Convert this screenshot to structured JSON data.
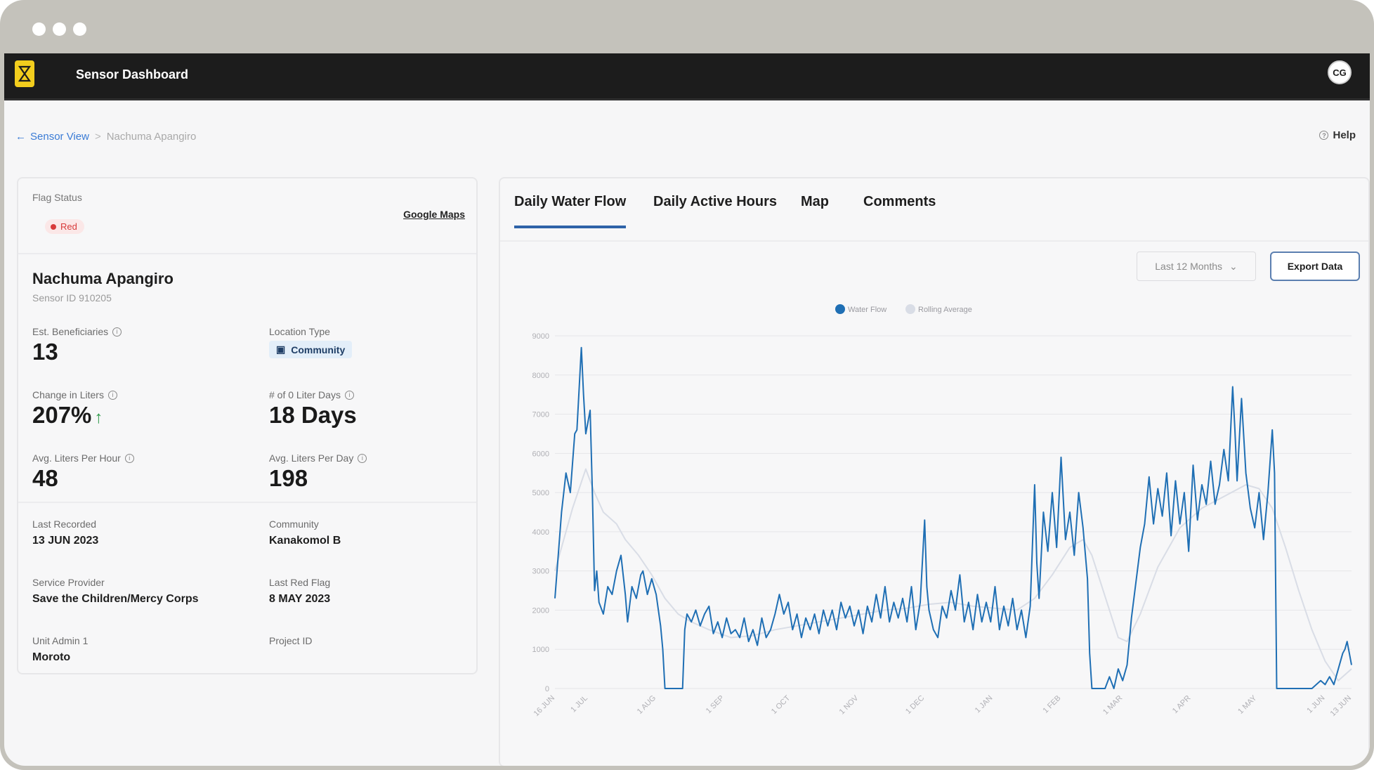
{
  "app": {
    "title": "Sensor Dashboard",
    "user_initials": "CG"
  },
  "breadcrumb": {
    "back_label": "Sensor View",
    "separator": ">",
    "current": "Nachuma Apangiro"
  },
  "help_label": "Help",
  "sensor": {
    "flag_status_label": "Flag Status",
    "flag_status": "Red",
    "google_maps_label": "Google Maps",
    "name": "Nachuma Apangiro",
    "sensor_id": "Sensor ID 910205",
    "stats": {
      "beneficiaries_label": "Est. Beneficiaries",
      "beneficiaries": "13",
      "location_type_label": "Location Type",
      "location_type": "Community",
      "change_label": "Change in Liters",
      "change": "207%",
      "zero_days_label": "# of 0 Liter Days",
      "zero_days": "18 Days",
      "avg_hour_label": "Avg. Liters Per Hour",
      "avg_hour": "48",
      "avg_day_label": "Avg. Liters Per Day",
      "avg_day": "198"
    },
    "meta": {
      "last_recorded_label": "Last Recorded",
      "last_recorded": "13 JUN 2023",
      "community_label": "Community",
      "community": "Kanakomol B",
      "service_provider_label": "Service Provider",
      "service_provider": "Save the Children/Mercy Corps",
      "last_red_flag_label": "Last Red Flag",
      "last_red_flag": "8 MAY 2023",
      "unit_admin_label": "Unit Admin 1",
      "unit_admin": "Moroto",
      "project_id_label": "Project ID",
      "project_id": ""
    }
  },
  "tabs": [
    "Daily Water Flow",
    "Daily Active Hours",
    "Map",
    "Comments"
  ],
  "controls": {
    "range": "Last 12 Months",
    "export_label": "Export Data"
  },
  "colors": {
    "flow": "#1f6fb4",
    "rolling": "#d9dde6",
    "accent": "#2e63a8",
    "flag_red": "#d83a3a"
  },
  "chart_data": {
    "type": "line",
    "legend": [
      "Water Flow",
      "Rolling Average"
    ],
    "legend_position": "top-center",
    "y_ticks": [
      0,
      1000,
      2000,
      3000,
      4000,
      5000,
      6000,
      7000,
      8000,
      9000
    ],
    "ylim": [
      0,
      9000
    ],
    "x_ticks": [
      "16 JUN",
      "1 JUL",
      "1 AUG",
      "1 SEP",
      "1 OCT",
      "1 NOV",
      "1 DEC",
      "1 JAN",
      "1 FEB",
      "1 MAR",
      "1 APR",
      "1 MAY",
      "1 JUN",
      "13 JUN"
    ],
    "x_tick_days": [
      0,
      15,
      46,
      77,
      107,
      138,
      168,
      199,
      230,
      258,
      289,
      319,
      350,
      362
    ],
    "grid": true,
    "series": [
      {
        "name": "Water Flow",
        "points": [
          [
            0,
            2300
          ],
          [
            3,
            4500
          ],
          [
            5,
            5500
          ],
          [
            7,
            5000
          ],
          [
            9,
            6500
          ],
          [
            10,
            6600
          ],
          [
            12,
            8700
          ],
          [
            13,
            7500
          ],
          [
            14,
            6500
          ],
          [
            16,
            7100
          ],
          [
            17,
            5000
          ],
          [
            18,
            2500
          ],
          [
            19,
            3000
          ],
          [
            20,
            2200
          ],
          [
            22,
            1900
          ],
          [
            24,
            2600
          ],
          [
            26,
            2400
          ],
          [
            28,
            3000
          ],
          [
            30,
            3400
          ],
          [
            32,
            2400
          ],
          [
            33,
            1700
          ],
          [
            35,
            2600
          ],
          [
            37,
            2300
          ],
          [
            39,
            2900
          ],
          [
            40,
            3000
          ],
          [
            42,
            2400
          ],
          [
            44,
            2800
          ],
          [
            46,
            2400
          ],
          [
            48,
            1600
          ],
          [
            49,
            1000
          ],
          [
            50,
            0
          ],
          [
            54,
            0
          ],
          [
            58,
            0
          ],
          [
            59,
            1500
          ],
          [
            60,
            1900
          ],
          [
            62,
            1700
          ],
          [
            64,
            2000
          ],
          [
            66,
            1600
          ],
          [
            68,
            1900
          ],
          [
            70,
            2100
          ],
          [
            72,
            1400
          ],
          [
            74,
            1700
          ],
          [
            76,
            1300
          ],
          [
            78,
            1800
          ],
          [
            80,
            1400
          ],
          [
            82,
            1500
          ],
          [
            84,
            1300
          ],
          [
            86,
            1800
          ],
          [
            88,
            1200
          ],
          [
            90,
            1500
          ],
          [
            92,
            1100
          ],
          [
            94,
            1800
          ],
          [
            96,
            1300
          ],
          [
            98,
            1500
          ],
          [
            100,
            1900
          ],
          [
            102,
            2400
          ],
          [
            104,
            1900
          ],
          [
            106,
            2200
          ],
          [
            108,
            1500
          ],
          [
            110,
            1900
          ],
          [
            112,
            1300
          ],
          [
            114,
            1800
          ],
          [
            116,
            1500
          ],
          [
            118,
            1900
          ],
          [
            120,
            1400
          ],
          [
            122,
            2000
          ],
          [
            124,
            1600
          ],
          [
            126,
            2000
          ],
          [
            128,
            1500
          ],
          [
            130,
            2200
          ],
          [
            132,
            1800
          ],
          [
            134,
            2100
          ],
          [
            136,
            1600
          ],
          [
            138,
            2000
          ],
          [
            140,
            1400
          ],
          [
            142,
            2100
          ],
          [
            144,
            1700
          ],
          [
            146,
            2400
          ],
          [
            148,
            1800
          ],
          [
            150,
            2600
          ],
          [
            152,
            1700
          ],
          [
            154,
            2200
          ],
          [
            156,
            1800
          ],
          [
            158,
            2300
          ],
          [
            160,
            1700
          ],
          [
            162,
            2600
          ],
          [
            164,
            1500
          ],
          [
            166,
            2200
          ],
          [
            168,
            4300
          ],
          [
            169,
            2600
          ],
          [
            170,
            2000
          ],
          [
            172,
            1500
          ],
          [
            174,
            1300
          ],
          [
            176,
            2100
          ],
          [
            178,
            1800
          ],
          [
            180,
            2500
          ],
          [
            182,
            2000
          ],
          [
            184,
            2900
          ],
          [
            186,
            1700
          ],
          [
            188,
            2200
          ],
          [
            190,
            1500
          ],
          [
            192,
            2400
          ],
          [
            194,
            1700
          ],
          [
            196,
            2200
          ],
          [
            198,
            1700
          ],
          [
            200,
            2600
          ],
          [
            202,
            1500
          ],
          [
            204,
            2100
          ],
          [
            206,
            1600
          ],
          [
            208,
            2300
          ],
          [
            210,
            1500
          ],
          [
            212,
            2000
          ],
          [
            214,
            1300
          ],
          [
            216,
            2100
          ],
          [
            218,
            5200
          ],
          [
            219,
            3200
          ],
          [
            220,
            2300
          ],
          [
            222,
            4500
          ],
          [
            224,
            3500
          ],
          [
            226,
            5000
          ],
          [
            228,
            3600
          ],
          [
            230,
            5900
          ],
          [
            232,
            3800
          ],
          [
            234,
            4500
          ],
          [
            236,
            3400
          ],
          [
            238,
            5000
          ],
          [
            240,
            4100
          ],
          [
            242,
            2800
          ],
          [
            243,
            900
          ],
          [
            244,
            0
          ],
          [
            250,
            0
          ],
          [
            252,
            300
          ],
          [
            254,
            0
          ],
          [
            256,
            500
          ],
          [
            258,
            200
          ],
          [
            260,
            600
          ],
          [
            262,
            1800
          ],
          [
            264,
            2700
          ],
          [
            266,
            3600
          ],
          [
            268,
            4200
          ],
          [
            270,
            5400
          ],
          [
            272,
            4200
          ],
          [
            274,
            5100
          ],
          [
            276,
            4400
          ],
          [
            278,
            5500
          ],
          [
            280,
            3900
          ],
          [
            282,
            5300
          ],
          [
            284,
            4200
          ],
          [
            286,
            5000
          ],
          [
            288,
            3500
          ],
          [
            290,
            5700
          ],
          [
            292,
            4300
          ],
          [
            294,
            5200
          ],
          [
            296,
            4700
          ],
          [
            298,
            5800
          ],
          [
            300,
            4700
          ],
          [
            302,
            5200
          ],
          [
            304,
            6100
          ],
          [
            306,
            5300
          ],
          [
            308,
            7700
          ],
          [
            309,
            6600
          ],
          [
            310,
            5300
          ],
          [
            312,
            7400
          ],
          [
            314,
            5500
          ],
          [
            316,
            4600
          ],
          [
            318,
            4100
          ],
          [
            320,
            5000
          ],
          [
            322,
            3800
          ],
          [
            324,
            5000
          ],
          [
            326,
            6600
          ],
          [
            327,
            5500
          ],
          [
            328,
            0
          ],
          [
            332,
            0
          ],
          [
            336,
            0
          ],
          [
            340,
            0
          ],
          [
            344,
            0
          ],
          [
            348,
            200
          ],
          [
            350,
            100
          ],
          [
            352,
            300
          ],
          [
            354,
            100
          ],
          [
            356,
            500
          ],
          [
            358,
            900
          ],
          [
            359,
            1000
          ],
          [
            360,
            1200
          ],
          [
            361,
            900
          ],
          [
            362,
            600
          ]
        ]
      },
      {
        "name": "Rolling Average",
        "points": [
          [
            0,
            3000
          ],
          [
            8,
            4600
          ],
          [
            14,
            5600
          ],
          [
            18,
            5000
          ],
          [
            22,
            4500
          ],
          [
            28,
            4200
          ],
          [
            32,
            3800
          ],
          [
            38,
            3400
          ],
          [
            44,
            2900
          ],
          [
            50,
            2300
          ],
          [
            56,
            1900
          ],
          [
            62,
            1700
          ],
          [
            70,
            1500
          ],
          [
            80,
            1300
          ],
          [
            90,
            1350
          ],
          [
            100,
            1500
          ],
          [
            110,
            1600
          ],
          [
            120,
            1700
          ],
          [
            130,
            1800
          ],
          [
            140,
            1900
          ],
          [
            150,
            2000
          ],
          [
            160,
            2050
          ],
          [
            170,
            2150
          ],
          [
            180,
            2200
          ],
          [
            190,
            2100
          ],
          [
            200,
            2050
          ],
          [
            210,
            2000
          ],
          [
            218,
            2300
          ],
          [
            226,
            2900
          ],
          [
            234,
            3600
          ],
          [
            240,
            3800
          ],
          [
            244,
            3400
          ],
          [
            248,
            2700
          ],
          [
            252,
            2000
          ],
          [
            256,
            1300
          ],
          [
            260,
            1200
          ],
          [
            266,
            1900
          ],
          [
            274,
            3100
          ],
          [
            284,
            4100
          ],
          [
            294,
            4600
          ],
          [
            304,
            4900
          ],
          [
            314,
            5200
          ],
          [
            320,
            5100
          ],
          [
            326,
            4600
          ],
          [
            332,
            3600
          ],
          [
            338,
            2500
          ],
          [
            344,
            1500
          ],
          [
            350,
            700
          ],
          [
            356,
            200
          ],
          [
            362,
            500
          ]
        ]
      }
    ]
  }
}
